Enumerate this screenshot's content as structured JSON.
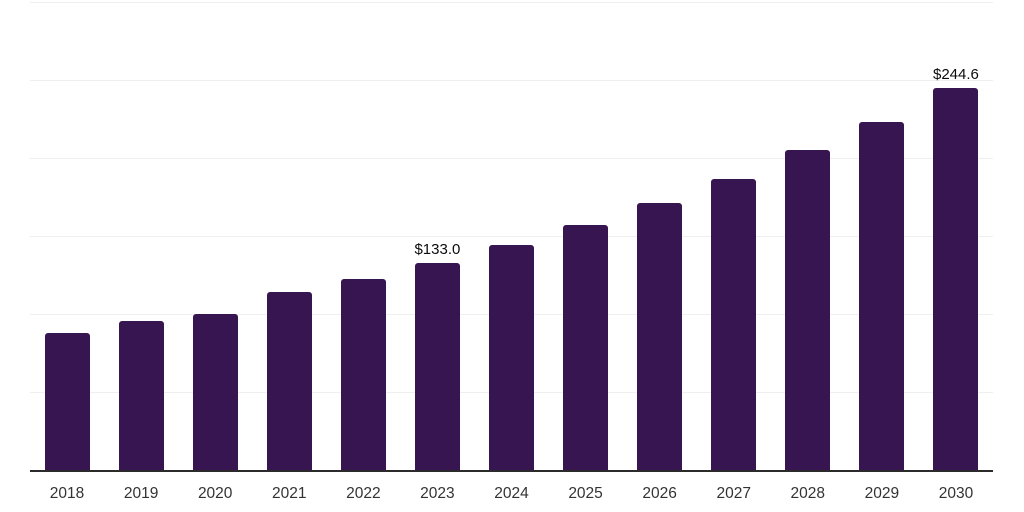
{
  "chart_data": {
    "type": "bar",
    "categories": [
      "2018",
      "2019",
      "2020",
      "2021",
      "2022",
      "2023",
      "2024",
      "2025",
      "2026",
      "2027",
      "2028",
      "2029",
      "2030"
    ],
    "values": [
      88.0,
      95.8,
      100.3,
      114.3,
      122.6,
      133.0,
      144.0,
      157.0,
      171.0,
      186.3,
      205.0,
      223.0,
      244.6
    ],
    "data_labels": [
      {
        "category": "2023",
        "text": "$133.0"
      },
      {
        "category": "2030",
        "text": "$244.6"
      }
    ],
    "value_prefix": "$",
    "ylim": [
      0,
      300
    ],
    "grid_interval": 50,
    "grid": "horizontal-only",
    "y_tick_labels_visible": false,
    "legend": "none",
    "colors": {
      "bar": "#371551",
      "gridline": "#efefef",
      "axis_line": "#2b2b2b",
      "data_label": "#0c0c0c",
      "tick_label": "#333333",
      "background": "#ffffff"
    }
  }
}
